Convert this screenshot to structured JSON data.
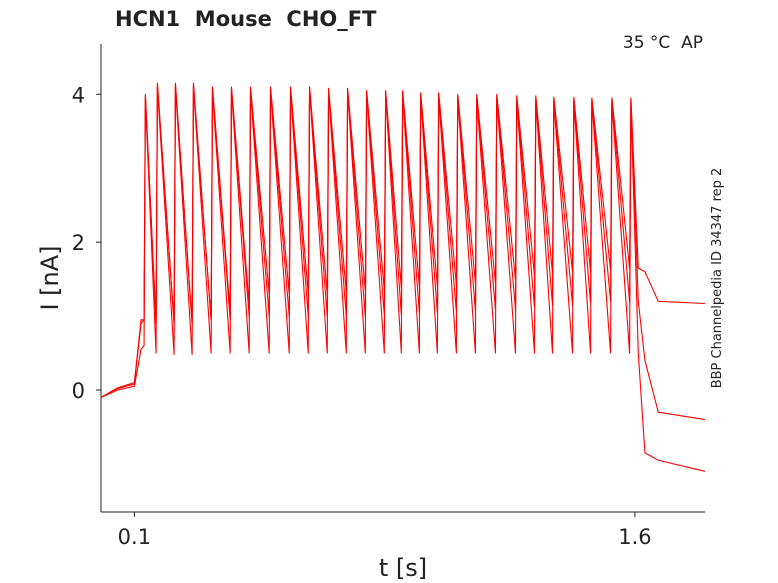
{
  "chart_data": {
    "type": "line",
    "title": "HCN1  Mouse  CHO_FT",
    "annotation": "35 °C  AP",
    "side_label": "BBP Channelpedia ID 34347 rep 2",
    "xlabel": "t [s]",
    "ylabel": "I [nA]",
    "xlim": [
      0,
      1.81
    ],
    "ylim": [
      -1.65,
      4.68
    ],
    "xticks": [
      0.1,
      1.6
    ],
    "yticks": [
      0,
      2,
      4
    ],
    "x": [
      0,
      0.05,
      0.1,
      0.12,
      0.129,
      0.133,
      0.165,
      0.169,
      0.219,
      0.223,
      0.273,
      0.277,
      0.33,
      0.334,
      0.387,
      0.391,
      0.444,
      0.448,
      0.504,
      0.508,
      0.564,
      0.568,
      0.621,
      0.625,
      0.678,
      0.682,
      0.735,
      0.739,
      0.792,
      0.796,
      0.849,
      0.853,
      0.9,
      0.904,
      0.954,
      0.958,
      1.008,
      1.012,
      1.065,
      1.069,
      1.122,
      1.126,
      1.182,
      1.186,
      1.242,
      1.246,
      1.299,
      1.303,
      1.353,
      1.357,
      1.413,
      1.417,
      1.467,
      1.471,
      1.527,
      1.531,
      1.584,
      1.588,
      1.61,
      1.63,
      1.67,
      1.81
    ],
    "series": [
      {
        "color": "#ff0000",
        "values": [
          -0.1,
          0.03,
          0.1,
          0.95,
          0.95,
          4.0,
          0.9,
          4.15,
          0.9,
          4.15,
          0.9,
          4.15,
          0.95,
          4.1,
          1.05,
          4.1,
          1.15,
          4.1,
          1.3,
          4.1,
          1.3,
          4.1,
          1.3,
          4.1,
          1.3,
          4.08,
          1.32,
          4.08,
          1.35,
          4.05,
          1.35,
          4.05,
          1.38,
          4.05,
          1.4,
          4.02,
          1.4,
          4.02,
          1.42,
          4.0,
          1.45,
          4.0,
          1.45,
          4.0,
          1.5,
          3.98,
          1.55,
          3.98,
          1.58,
          3.96,
          1.6,
          3.96,
          1.6,
          3.95,
          1.62,
          3.95,
          1.65,
          3.95,
          1.65,
          1.6,
          1.2,
          1.17
        ]
      },
      {
        "color": "#ff0000",
        "values": [
          -0.1,
          0.02,
          0.08,
          0.9,
          0.95,
          3.98,
          0.9,
          4.13,
          0.9,
          4.13,
          0.9,
          4.12,
          0.95,
          4.08,
          0.95,
          4.08,
          1.0,
          4.08,
          1.0,
          4.08,
          1.0,
          4.08,
          1.0,
          4.08,
          1.0,
          4.06,
          1.0,
          4.06,
          1.0,
          4.03,
          1.02,
          4.03,
          1.02,
          4.03,
          1.05,
          4.0,
          1.05,
          4.0,
          1.05,
          3.98,
          1.08,
          3.98,
          1.1,
          3.98,
          1.1,
          3.96,
          1.12,
          3.96,
          1.15,
          3.94,
          1.15,
          3.94,
          1.18,
          3.93,
          1.2,
          3.93,
          1.2,
          3.93,
          1.2,
          0.4,
          -0.3,
          -0.4
        ]
      },
      {
        "color": "#ff0000",
        "values": [
          -0.1,
          0.0,
          0.05,
          0.55,
          0.6,
          3.95,
          0.5,
          4.1,
          0.48,
          4.1,
          0.48,
          4.1,
          0.5,
          4.05,
          0.5,
          4.05,
          0.5,
          4.05,
          0.5,
          4.05,
          0.5,
          4.05,
          0.5,
          4.05,
          0.5,
          4.03,
          0.5,
          4.03,
          0.5,
          4.0,
          0.5,
          4.0,
          0.5,
          4.0,
          0.5,
          3.97,
          0.5,
          3.97,
          0.5,
          3.95,
          0.5,
          3.95,
          0.5,
          3.95,
          0.5,
          3.93,
          0.5,
          3.93,
          0.5,
          3.91,
          0.5,
          3.91,
          0.5,
          3.9,
          0.5,
          3.9,
          0.5,
          3.9,
          0.5,
          -0.85,
          -0.95,
          -1.1
        ]
      }
    ]
  }
}
